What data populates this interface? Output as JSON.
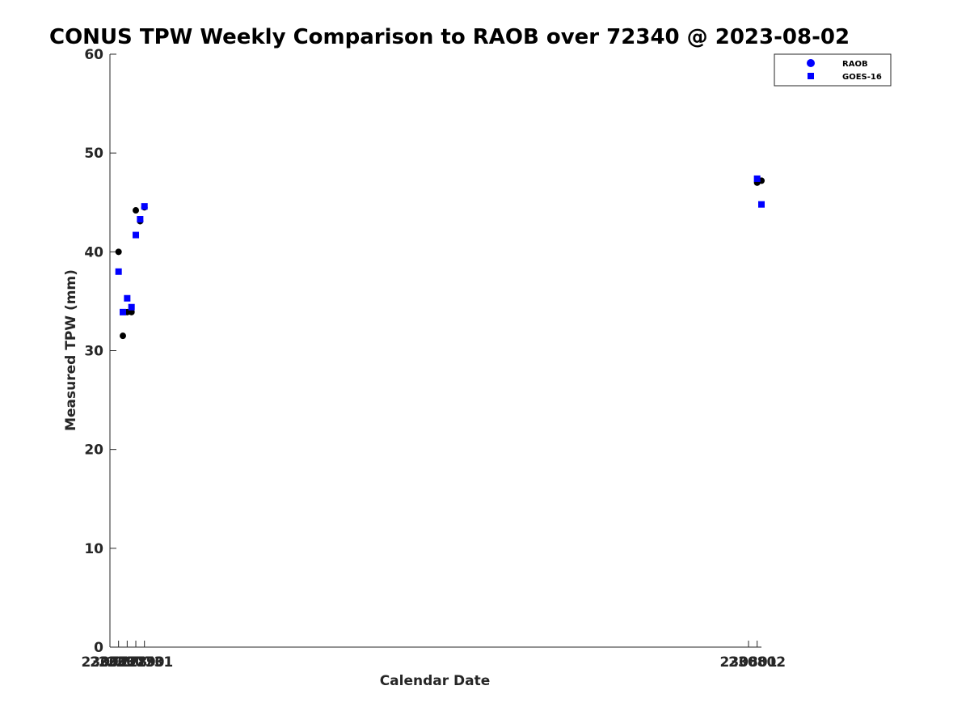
{
  "chart_data": {
    "type": "scatter",
    "title": "CONUS TPW Weekly Comparison to RAOB over 72340 @ 2023-08-02",
    "xlabel": "Calendar Date",
    "ylabel": "Measured TPW (mm)",
    "xlim": [
      230727,
      230802.5
    ],
    "ylim": [
      0,
      60
    ],
    "x_ticks": [
      230727,
      230728,
      230729,
      230730,
      230731,
      230801,
      230802
    ],
    "x_tick_labels": [
      "230727",
      "230728",
      "230729",
      "230730",
      "230731",
      "230801",
      "230802"
    ],
    "y_ticks": [
      0,
      10,
      20,
      30,
      40,
      50,
      60
    ],
    "y_tick_labels": [
      "0",
      "10",
      "20",
      "30",
      "40",
      "50",
      "60"
    ],
    "grid": false,
    "legend_position": "top-right",
    "series": [
      {
        "name": "RAOB",
        "legend_color": "#0000ff",
        "marker_color": "#000000",
        "marker": "circle",
        "points": [
          {
            "x": 230728.0,
            "y": 40.0
          },
          {
            "x": 230728.5,
            "y": 31.5
          },
          {
            "x": 230729.0,
            "y": 33.9
          },
          {
            "x": 230729.5,
            "y": 33.9
          },
          {
            "x": 230730.0,
            "y": 44.2
          },
          {
            "x": 230730.5,
            "y": 43.1
          },
          {
            "x": 230731.0,
            "y": 44.5
          },
          {
            "x": 230802.0,
            "y": 47.0
          },
          {
            "x": 230802.5,
            "y": 47.2
          }
        ]
      },
      {
        "name": "GOES-16",
        "legend_color": "#0000ff",
        "marker_color": "#0000ff",
        "marker": "square",
        "points": [
          {
            "x": 230728.0,
            "y": 38.0
          },
          {
            "x": 230728.5,
            "y": 33.9
          },
          {
            "x": 230729.0,
            "y": 35.3
          },
          {
            "x": 230729.5,
            "y": 34.4
          },
          {
            "x": 230730.0,
            "y": 41.7
          },
          {
            "x": 230730.5,
            "y": 43.3
          },
          {
            "x": 230731.0,
            "y": 44.6
          },
          {
            "x": 230802.0,
            "y": 47.4
          },
          {
            "x": 230802.5,
            "y": 44.8
          }
        ]
      }
    ]
  }
}
